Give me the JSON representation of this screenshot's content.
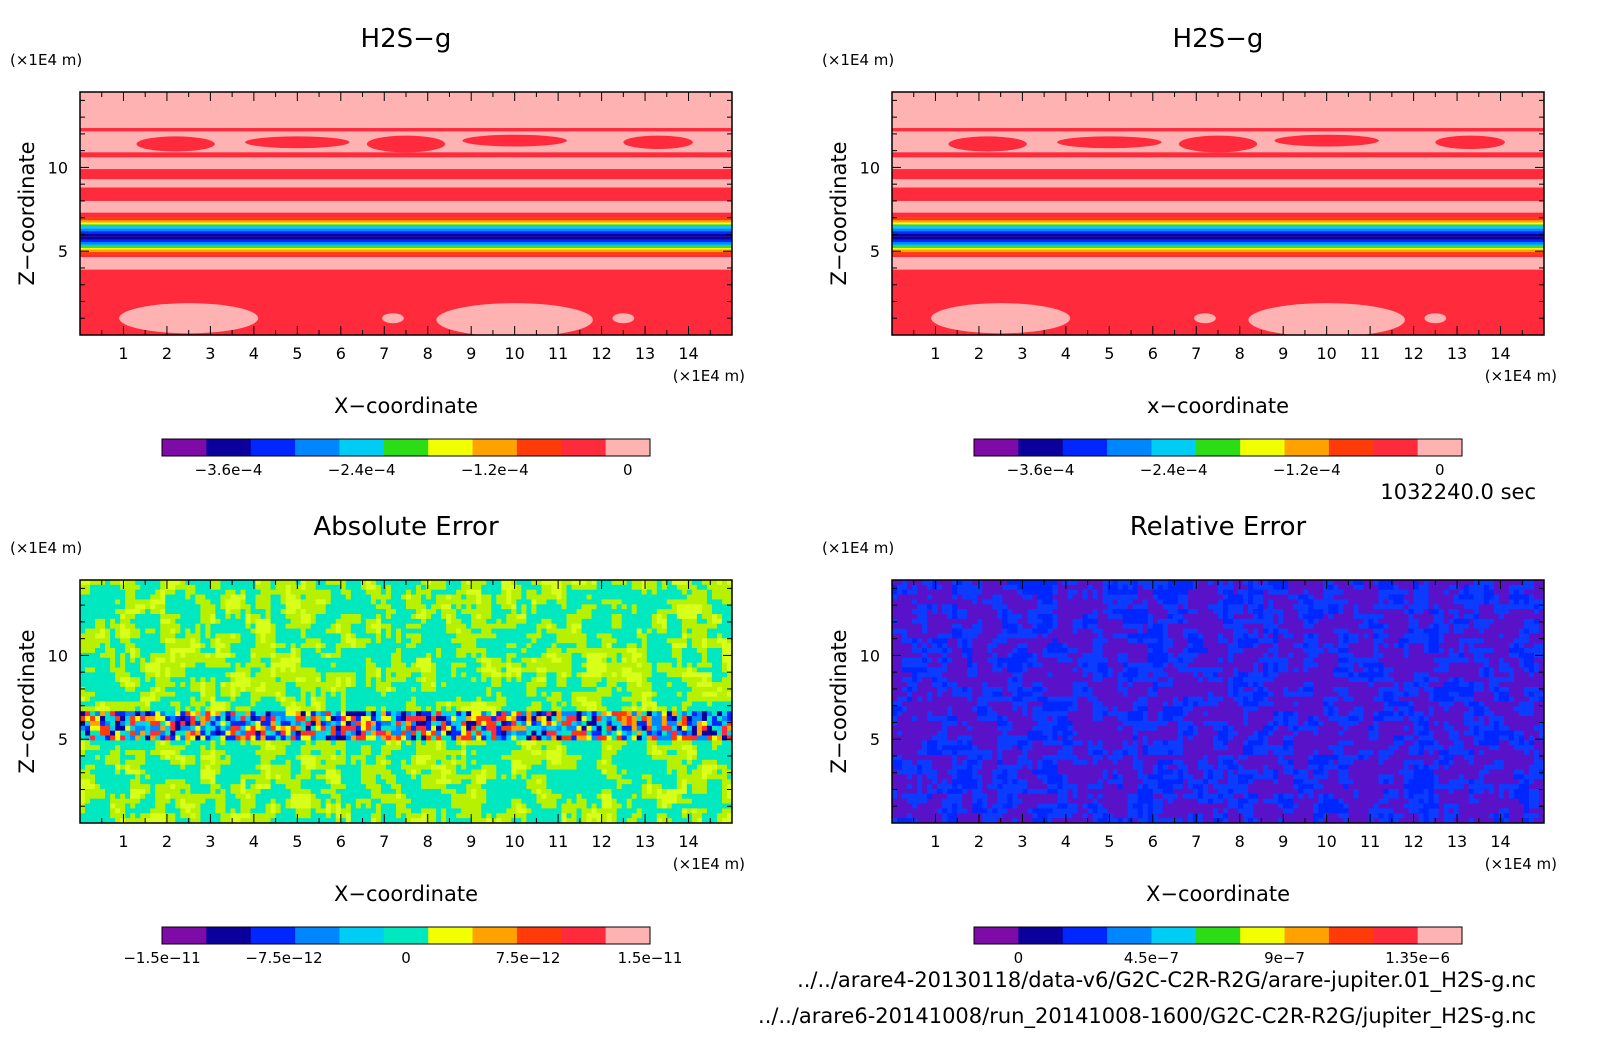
{
  "time_label": "1032240.0 sec",
  "file_paths": [
    "../../arare4-20130118/data-v6/G2C-C2R-R2G/arare-jupiter.01_H2S-g.nc",
    "../../arare6-20141008/run_20141008-1600/G2C-C2R-R2G/jupiter_H2S-g.nc"
  ],
  "chart_data": [
    {
      "type": "heatmap",
      "title": "H2S−g",
      "xlabel": "X−coordinate",
      "ylabel": "Z−coordinate",
      "x_unit": "(×1E4 m)",
      "y_unit": "(×1E4 m)",
      "xlim": [
        0,
        15
      ],
      "ylim": [
        0,
        14.5
      ],
      "x_ticks": [
        1,
        2,
        3,
        4,
        5,
        6,
        7,
        8,
        9,
        10,
        11,
        12,
        13,
        14
      ],
      "y_ticks": [
        5,
        10
      ],
      "colorbar": {
        "colors": [
          "#7e0aa8",
          "#0b009b",
          "#0027ff",
          "#0086ff",
          "#00cdf6",
          "#2cdc16",
          "#f2ff00",
          "#ffa200",
          "#ff3b0a",
          "#ff2a3c",
          "#ffb2b2"
        ],
        "tick_labels": [
          "−3.6e−4",
          "−2.4e−4",
          "−1.2e−4",
          "0"
        ],
        "tick_values": [
          -0.00036,
          -0.00024,
          -0.00012,
          0
        ],
        "range": [
          -0.00042,
          2e-05
        ]
      },
      "pattern": "bands"
    },
    {
      "type": "heatmap",
      "title": "H2S−g",
      "xlabel": "x−coordinate",
      "ylabel": "Z−coordinate",
      "x_unit": "(×1E4 m)",
      "y_unit": "(×1E4 m)",
      "xlim": [
        0,
        15
      ],
      "ylim": [
        0,
        14.5
      ],
      "x_ticks": [
        1,
        2,
        3,
        4,
        5,
        6,
        7,
        8,
        9,
        10,
        11,
        12,
        13,
        14
      ],
      "y_ticks": [
        5,
        10
      ],
      "colorbar": {
        "colors": [
          "#7e0aa8",
          "#0b009b",
          "#0027ff",
          "#0086ff",
          "#00cdf6",
          "#2cdc16",
          "#f2ff00",
          "#ffa200",
          "#ff3b0a",
          "#ff2a3c",
          "#ffb2b2"
        ],
        "tick_labels": [
          "−3.6e−4",
          "−2.4e−4",
          "−1.2e−4",
          "0"
        ],
        "tick_values": [
          -0.00036,
          -0.00024,
          -0.00012,
          0
        ],
        "range": [
          -0.00042,
          2e-05
        ]
      },
      "pattern": "bands"
    },
    {
      "type": "heatmap",
      "title": "Absolute Error",
      "xlabel": "X−coordinate",
      "ylabel": "Z−coordinate",
      "x_unit": "(×1E4 m)",
      "y_unit": "(×1E4 m)",
      "xlim": [
        0,
        15
      ],
      "ylim": [
        0,
        14.5
      ],
      "x_ticks": [
        1,
        2,
        3,
        4,
        5,
        6,
        7,
        8,
        9,
        10,
        11,
        12,
        13,
        14
      ],
      "y_ticks": [
        5,
        10
      ],
      "colorbar": {
        "colors": [
          "#7e0aa8",
          "#0b009b",
          "#0027ff",
          "#0086ff",
          "#00cdf6",
          "#00e8c0",
          "#f2ff00",
          "#ffa200",
          "#ff3b0a",
          "#ff2a3c",
          "#ffb2b2"
        ],
        "tick_labels": [
          "−1.5e−11",
          "−7.5e−12",
          "0",
          "7.5e−12",
          "1.5e−11"
        ],
        "tick_values": [
          -1.5e-11,
          -7.5e-12,
          0,
          7.5e-12,
          1.5e-11
        ],
        "range": [
          -1.5e-11,
          1.5e-11
        ]
      },
      "pattern": "noise_abs"
    },
    {
      "type": "heatmap",
      "title": "Relative Error",
      "xlabel": "X−coordinate",
      "ylabel": "Z−coordinate",
      "x_unit": "(×1E4 m)",
      "y_unit": "(×1E4 m)",
      "xlim": [
        0,
        15
      ],
      "ylim": [
        0,
        14.5
      ],
      "x_ticks": [
        1,
        2,
        3,
        4,
        5,
        6,
        7,
        8,
        9,
        10,
        11,
        12,
        13,
        14
      ],
      "y_ticks": [
        5,
        10
      ],
      "colorbar": {
        "colors": [
          "#7e0aa8",
          "#0b009b",
          "#0027ff",
          "#0086ff",
          "#00cdf6",
          "#2cdc16",
          "#f2ff00",
          "#ffa200",
          "#ff3b0a",
          "#ff2a3c",
          "#ffb2b2"
        ],
        "tick_labels": [
          "0",
          "4.5e−7",
          "9e−7",
          "1.35e−6"
        ],
        "tick_values": [
          0,
          4.5e-07,
          9e-07,
          1.35e-06
        ],
        "range": [
          -1.5e-07,
          1.5e-06
        ]
      },
      "pattern": "noise_rel"
    }
  ]
}
